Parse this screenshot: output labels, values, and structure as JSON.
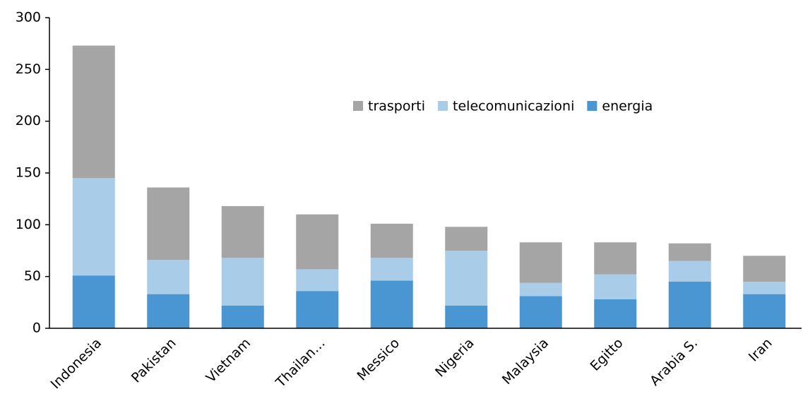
{
  "chart_data": {
    "type": "stacked_bar",
    "categories": [
      "Indonesia",
      "Pakistan",
      "Vietnam",
      "Thailan…",
      "Messico",
      "Nigeria",
      "Malaysia",
      "Egitto",
      "Arabia S.",
      "Iran"
    ],
    "series": [
      {
        "name": "energia",
        "color": "#4a96d2",
        "values": [
          51,
          33,
          22,
          36,
          46,
          22,
          31,
          28,
          45,
          33
        ]
      },
      {
        "name": "telecomunicazioni",
        "color": "#a9cce9",
        "values": [
          94,
          33,
          46,
          21,
          22,
          53,
          13,
          24,
          20,
          12
        ]
      },
      {
        "name": "trasporti",
        "color": "#a5a5a5",
        "values": [
          128,
          70,
          50,
          53,
          33,
          23,
          39,
          31,
          17,
          25
        ]
      }
    ],
    "ylim": [
      0,
      300
    ],
    "yticks": [
      0,
      50,
      100,
      150,
      200,
      250,
      300
    ],
    "grid": false
  }
}
